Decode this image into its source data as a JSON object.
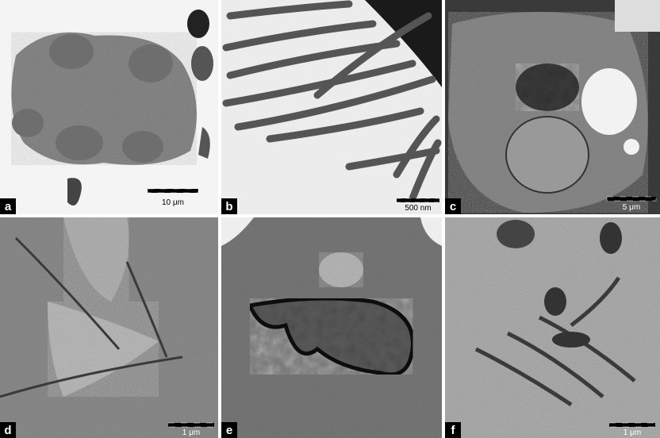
{
  "panels": [
    {
      "label": "a",
      "scale_bar": "10 μm"
    },
    {
      "label": "b",
      "scale_bar": "500 nm"
    },
    {
      "label": "c",
      "scale_bar": "5 μm"
    },
    {
      "label": "d",
      "scale_bar": "1 μm"
    },
    {
      "label": "e"
    },
    {
      "label": "f",
      "scale_bar": "1 μm"
    }
  ]
}
